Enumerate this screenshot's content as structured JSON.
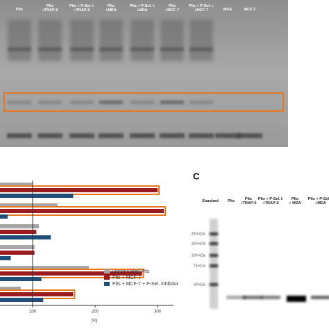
{
  "panel_a": {
    "lanes": [
      [
        "Plts"
      ],
      [
        "Plts",
        "+TRAP-6"
      ],
      [
        "Plts + P-Sel. I.",
        "+TRAP-6"
      ],
      [
        "Plts",
        "+MDA"
      ],
      [
        "Plts + P-Sel. I.",
        "+MDA"
      ],
      [
        "Plts",
        "+MCF-7"
      ],
      [
        "Plts + P-Sel. I.",
        "+MCF-7"
      ],
      [
        "MDA"
      ],
      [
        "MCF-7"
      ]
    ]
  },
  "panel_b": {
    "type": "bar",
    "orientation": "horizontal",
    "x_label": "[%]",
    "xlim": [
      50,
      330
    ],
    "xticks": [
      100,
      200,
      300
    ],
    "reference_line": 100,
    "highlight_color": "#e87722",
    "series": [
      {
        "name": "unstimulated Plts",
        "color": "#a6a6a6",
        "values": [
          100,
          140,
          110,
          103,
          190,
          81
        ]
      },
      {
        "name": "Plts + MCF-7",
        "color": "#9b1c1f",
        "values": [
          300,
          310,
          106,
          103,
          275,
          165
        ],
        "highlight": [
          true,
          true,
          false,
          false,
          true,
          true
        ]
      },
      {
        "name": "Plts + MCF-7 + P-Sel. Inhibitor",
        "color": "#1f4e79",
        "values": [
          165,
          60,
          129,
          65,
          114,
          117
        ]
      }
    ]
  },
  "panel_c": {
    "label": "C",
    "lanes": [
      [
        "Standard"
      ],
      [
        "Plts"
      ],
      [
        "Plts",
        "+TRAP-6"
      ],
      [
        "Plts + P-Sel. I.",
        "+TRAP-6"
      ],
      [
        "Plts",
        "+ MDA"
      ],
      [
        "Plts + P-Sel. I.",
        "+MDA"
      ]
    ],
    "markers": [
      "250 kDa",
      "150 kDa",
      "100 kDa",
      "75 kDa",
      "50 kDa"
    ]
  }
}
